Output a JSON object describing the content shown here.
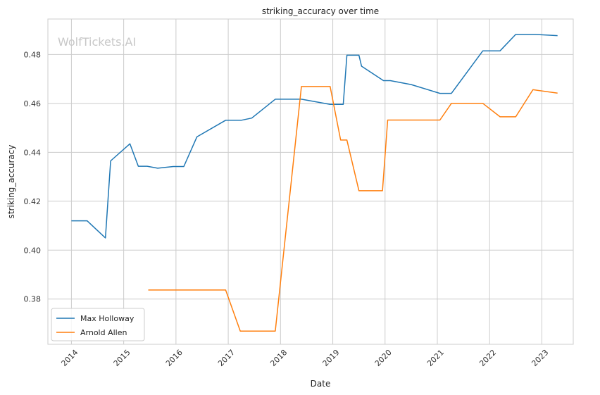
{
  "chart_data": {
    "type": "line",
    "title": "striking_accuracy over time",
    "xlabel": "Date",
    "ylabel": "striking_accuracy",
    "watermark": "WolfTickets.AI",
    "xlim": [
      2013.55,
      2023.6
    ],
    "ylim": [
      0.3615,
      0.4945
    ],
    "x_ticks": [
      2014,
      2015,
      2016,
      2017,
      2018,
      2019,
      2020,
      2021,
      2022,
      2023
    ],
    "x_tick_labels": [
      "2014",
      "2015",
      "2016",
      "2017",
      "2018",
      "2019",
      "2020",
      "2021",
      "2022",
      "2023"
    ],
    "y_ticks": [
      0.38,
      0.4,
      0.42,
      0.44,
      0.46,
      0.48
    ],
    "y_tick_labels": [
      "0.38",
      "0.40",
      "0.42",
      "0.44",
      "0.46",
      "0.48"
    ],
    "grid": true,
    "legend_position": "lower-left",
    "series": [
      {
        "name": "Max Holloway",
        "color": "#1f77b4",
        "points": [
          [
            2014.0,
            0.412
          ],
          [
            2014.3,
            0.412
          ],
          [
            2014.65,
            0.405
          ],
          [
            2014.75,
            0.4365
          ],
          [
            2015.12,
            0.4435
          ],
          [
            2015.28,
            0.4343
          ],
          [
            2015.45,
            0.4343
          ],
          [
            2015.65,
            0.4335
          ],
          [
            2015.95,
            0.4342
          ],
          [
            2016.15,
            0.4342
          ],
          [
            2016.4,
            0.4463
          ],
          [
            2016.95,
            0.4531
          ],
          [
            2017.25,
            0.4531
          ],
          [
            2017.45,
            0.454
          ],
          [
            2017.9,
            0.4617
          ],
          [
            2018.4,
            0.4617
          ],
          [
            2018.95,
            0.4596
          ],
          [
            2019.2,
            0.4596
          ],
          [
            2019.27,
            0.4797
          ],
          [
            2019.5,
            0.4797
          ],
          [
            2019.55,
            0.4752
          ],
          [
            2019.97,
            0.4693
          ],
          [
            2020.1,
            0.4693
          ],
          [
            2020.5,
            0.4677
          ],
          [
            2021.05,
            0.4641
          ],
          [
            2021.27,
            0.4641
          ],
          [
            2021.87,
            0.4815
          ],
          [
            2022.2,
            0.4815
          ],
          [
            2022.5,
            0.4882
          ],
          [
            2022.87,
            0.4882
          ],
          [
            2023.3,
            0.4877
          ]
        ]
      },
      {
        "name": "Arnold Allen",
        "color": "#ff7f0e",
        "points": [
          [
            2015.47,
            0.3837
          ],
          [
            2016.95,
            0.3837
          ],
          [
            2017.23,
            0.3669
          ],
          [
            2017.9,
            0.3669
          ],
          [
            2018.4,
            0.4669
          ],
          [
            2018.95,
            0.4669
          ],
          [
            2019.15,
            0.445
          ],
          [
            2019.27,
            0.445
          ],
          [
            2019.5,
            0.4243
          ],
          [
            2019.95,
            0.4243
          ],
          [
            2020.05,
            0.4532
          ],
          [
            2021.05,
            0.4532
          ],
          [
            2021.27,
            0.46
          ],
          [
            2021.87,
            0.46
          ],
          [
            2022.2,
            0.4545
          ],
          [
            2022.5,
            0.4545
          ],
          [
            2022.83,
            0.4656
          ],
          [
            2023.3,
            0.4642
          ]
        ]
      }
    ]
  }
}
